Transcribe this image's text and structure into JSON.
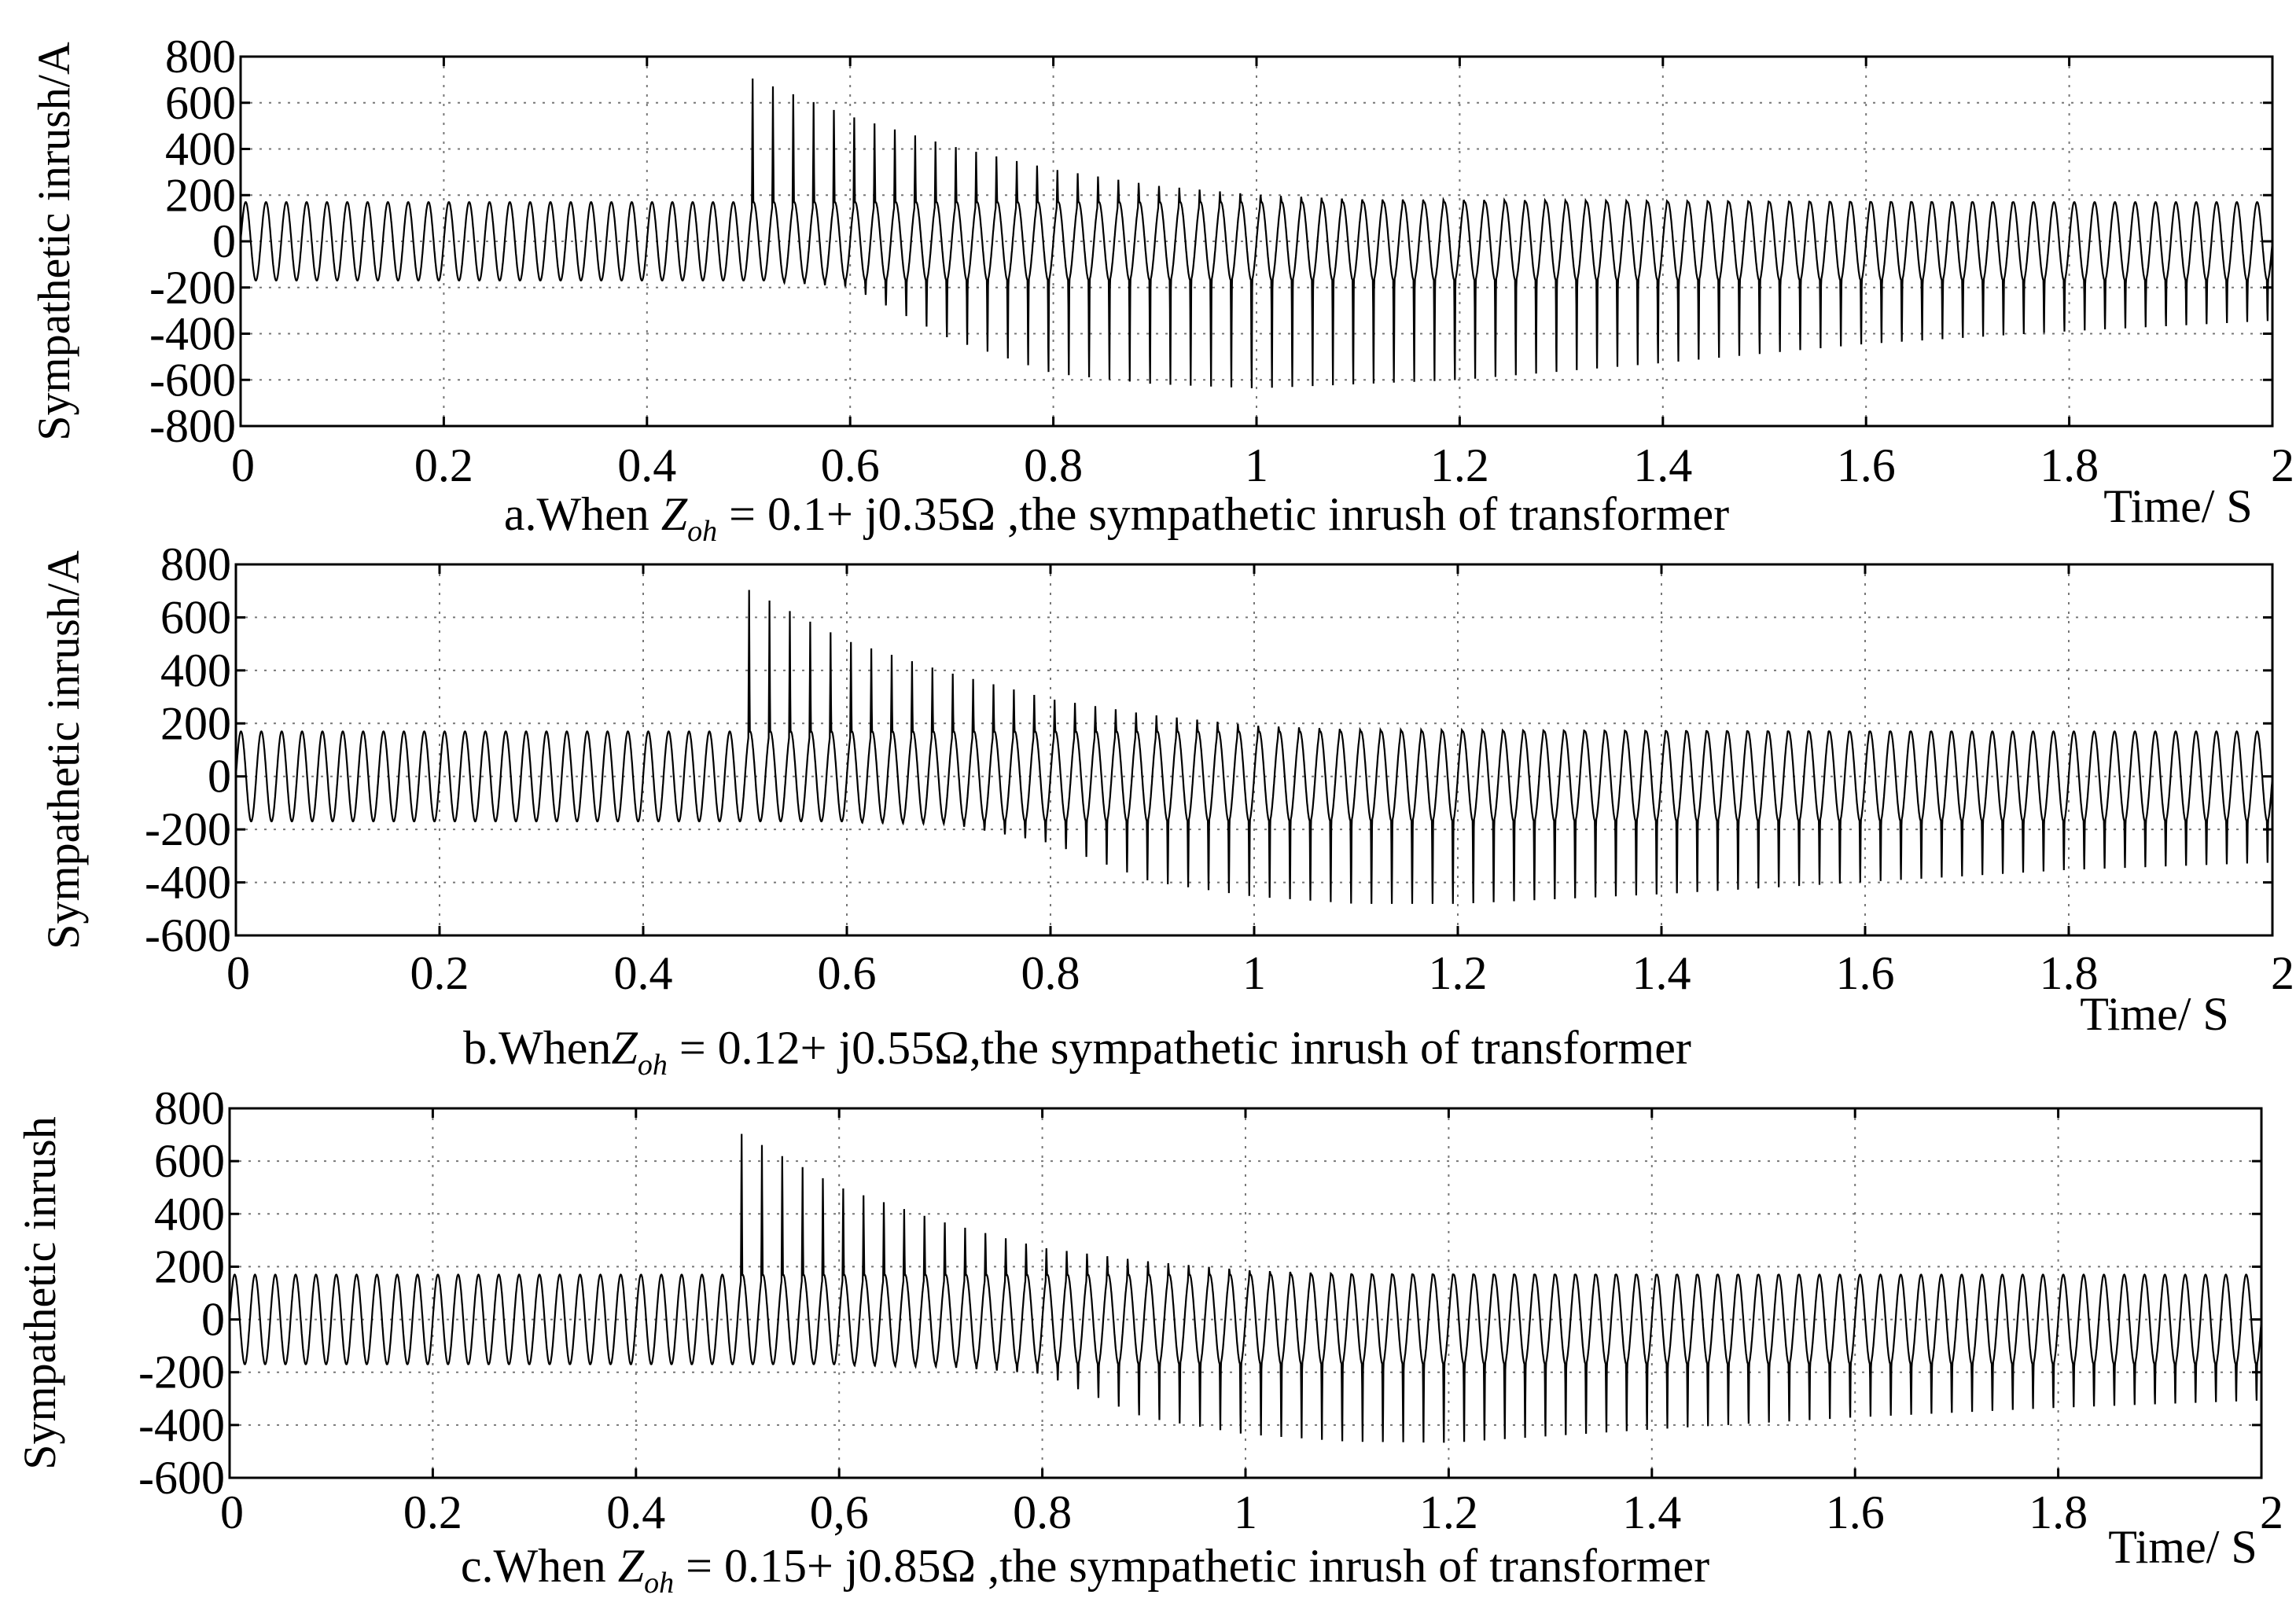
{
  "chart_data": [
    {
      "type": "line",
      "id": "a",
      "ylabel": "Sympathetic inrush/A",
      "xlabel": "Time/ S",
      "caption": {
        "prefix": "a.When ",
        "math": "Z",
        "sub": "oh",
        "formula": " = 0.1+ j0.35Ω",
        "suffix": " ,the sympathetic inrush of transformer"
      },
      "xlim": [
        0,
        2
      ],
      "ylim": [
        -800,
        800
      ],
      "xticks": [
        "0",
        "0.2",
        "0.4",
        "0.6",
        "0.8",
        "1",
        "1.2",
        "1.4",
        "1.6",
        "1.8",
        "2"
      ],
      "yticks": [
        "800",
        "600",
        "400",
        "200",
        "0",
        "-200",
        "-400",
        "-600",
        "-800"
      ],
      "ytick_values": [
        800,
        600,
        400,
        200,
        0,
        -200,
        -400,
        -600,
        -800
      ],
      "grid": true,
      "series": [
        {
          "name": "sympathetic inrush",
          "frequency_hz": 50,
          "steady_amplitude": 170,
          "inrush_start_s": 0.5,
          "positive_peak_envelope": {
            "x": [
              0.5,
              0.6,
              0.7,
              0.8,
              0.9,
              1.0,
              1.1,
              2.0
            ],
            "y": [
              720,
              550,
              420,
              320,
              250,
              210,
              190,
              170
            ]
          },
          "negative_peak_envelope": {
            "x": [
              0.5,
              0.6,
              0.7,
              0.8,
              0.9,
              1.0,
              1.2,
              1.4,
              1.6,
              1.8,
              2.0
            ],
            "y": [
              -170,
              -200,
              -450,
              -610,
              -660,
              -680,
              -640,
              -560,
              -470,
              -410,
              -360
            ]
          }
        }
      ]
    },
    {
      "type": "line",
      "id": "b",
      "ylabel": "Sympathetic inrush/A",
      "xlabel": "Time/ S",
      "caption": {
        "prefix": "b.When",
        "math": "Z",
        "sub": "oh",
        "formula": " = 0.12+ j0.55Ω",
        "suffix": ",the sympathetic inrush of transformer"
      },
      "xlim": [
        0,
        2
      ],
      "ylim": [
        -600,
        800
      ],
      "xticks": [
        "0",
        "0.2",
        "0.4",
        "0.6",
        "0.8",
        "1",
        "1.2",
        "1.4",
        "1.6",
        "1.8",
        "2"
      ],
      "yticks": [
        "800",
        "600",
        "400",
        "200",
        "0",
        "-200",
        "-400",
        "-600"
      ],
      "ytick_values": [
        800,
        600,
        400,
        200,
        0,
        -200,
        -400,
        -600
      ],
      "grid": true,
      "series": [
        {
          "name": "sympathetic inrush",
          "frequency_hz": 50,
          "steady_amplitude": 170,
          "inrush_start_s": 0.5,
          "positive_peak_envelope": {
            "x": [
              0.5,
              0.6,
              0.7,
              0.8,
              0.9,
              1.0,
              1.1,
              2.0
            ],
            "y": [
              720,
              520,
              400,
              300,
              240,
              200,
              185,
              170
            ]
          },
          "negative_peak_envelope": {
            "x": [
              0.5,
              0.7,
              0.8,
              0.9,
              1.0,
              1.1,
              1.2,
              1.4,
              1.6,
              1.8,
              2.0
            ],
            "y": [
              -170,
              -180,
              -260,
              -420,
              -480,
              -510,
              -510,
              -470,
              -420,
              -370,
              -340
            ]
          }
        }
      ]
    },
    {
      "type": "line",
      "id": "c",
      "ylabel": "Sympathetic inrush",
      "xlabel": "Time/ S",
      "caption": {
        "prefix": "c.When ",
        "math": "Z",
        "sub": "oh",
        "formula": " = 0.15+ j0.85Ω",
        "suffix": " ,the sympathetic inrush of transformer"
      },
      "xlim": [
        0,
        2
      ],
      "ylim": [
        -600,
        800
      ],
      "xticks": [
        "0",
        "0.2",
        "0.4",
        "0,6",
        "0.8",
        "1",
        "1.2",
        "1.4",
        "1.6",
        "1.8",
        "2"
      ],
      "yticks": [
        "800",
        "600",
        "400",
        "200",
        "0",
        "-200",
        "-400",
        "-600"
      ],
      "ytick_values": [
        800,
        600,
        400,
        200,
        0,
        -200,
        -400,
        -600
      ],
      "grid": true,
      "series": [
        {
          "name": "sympathetic inrush",
          "frequency_hz": 50,
          "steady_amplitude": 170,
          "inrush_start_s": 0.5,
          "positive_peak_envelope": {
            "x": [
              0.5,
              0.6,
              0.7,
              0.8,
              0.9,
              1.0,
              1.1,
              2.0
            ],
            "y": [
              720,
              510,
              380,
              280,
              230,
              195,
              180,
              170
            ]
          },
          "negative_peak_envelope": {
            "x": [
              0.5,
              0.7,
              0.8,
              0.9,
              1.0,
              1.1,
              1.2,
              1.4,
              1.6,
              1.8,
              2.0
            ],
            "y": [
              -170,
              -180,
              -210,
              -390,
              -460,
              -490,
              -495,
              -440,
              -390,
              -350,
              -320
            ]
          }
        }
      ]
    }
  ]
}
